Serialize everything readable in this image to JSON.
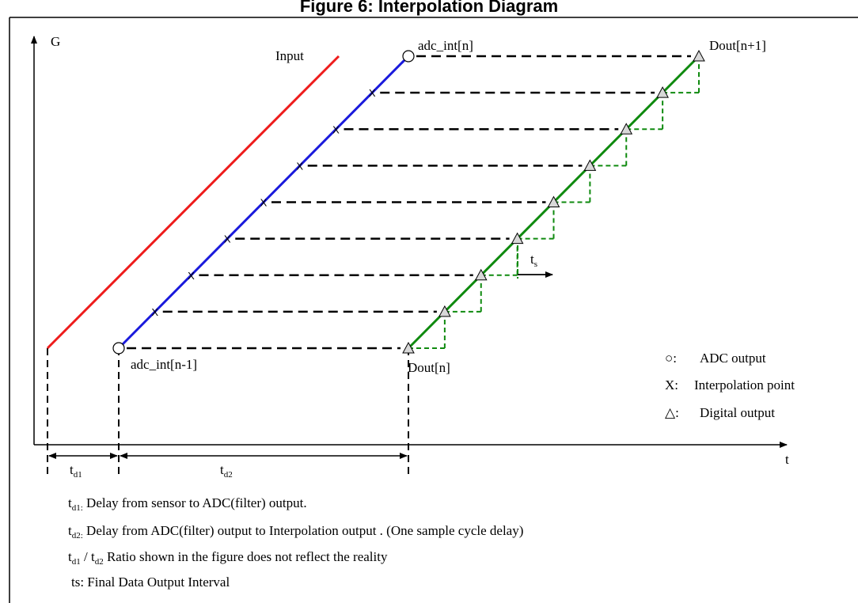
{
  "title": "Figure 6: Interpolation Diagram",
  "axes": {
    "y_label": "G",
    "x_label": "t"
  },
  "curves": {
    "input_label": "Input",
    "adc_start_label": "adc_int[n-1]",
    "adc_end_label": "adc_int[n]",
    "dout_start_label": "Dout[n]",
    "dout_end_label": "Dout[n+1]",
    "interpolation_mark": "X",
    "colors": {
      "input": "#ee1c1c",
      "interpolation": "#1a1adc",
      "digital": "#0f8a0f",
      "stair": "#0f8a0f",
      "projection": "#000000"
    },
    "interpolation_points": 7,
    "digital_steps": 8
  },
  "legend": {
    "adc_output": {
      "symbol": "○:",
      "text": "ADC output"
    },
    "interpolation_point": {
      "symbol": "X:",
      "text": "Interpolation point"
    },
    "digital_output": {
      "symbol": "△:",
      "text": "Digital output"
    }
  },
  "delays": {
    "td1": {
      "base": "t",
      "sub": "d1"
    },
    "td2": {
      "base": "t",
      "sub": "d2"
    },
    "ts": {
      "base": "t",
      "sub": "s"
    }
  },
  "notes": [
    {
      "base": "t",
      "sub": "d1:",
      "text": " Delay from sensor to ADC(filter) output."
    },
    {
      "base": "t",
      "sub": "d2:",
      "text": " Delay from ADC(filter) output to Interpolation output . (One sample cycle delay)"
    },
    {
      "base": "t",
      "sub": "d1",
      "mid": " / t",
      "sub2": "d2",
      "text": " Ratio shown in the figure does not reflect the reality"
    },
    {
      "base": "",
      "sub": "",
      "text": "ts: Final Data Output Interval"
    }
  ]
}
